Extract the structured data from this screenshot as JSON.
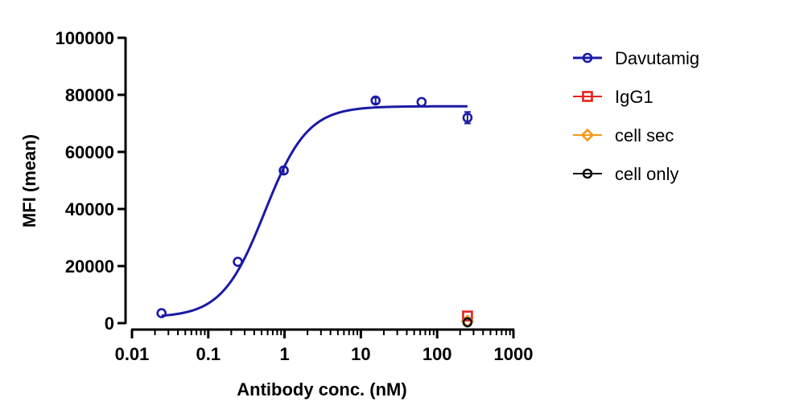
{
  "chart_data": {
    "type": "scatter",
    "title": "",
    "xlabel": "Antibody conc. (nM)",
    "ylabel": "MFI (mean)",
    "xscale": "log",
    "xlim": [
      0.01,
      1000
    ],
    "ylim": [
      0,
      100000
    ],
    "x_ticks": [
      0.01,
      0.1,
      1,
      10,
      100,
      1000
    ],
    "x_tick_labels": [
      "0.01",
      "0.1",
      "1",
      "10",
      "100",
      "1000"
    ],
    "y_ticks": [
      0,
      20000,
      40000,
      60000,
      80000,
      100000
    ],
    "y_tick_labels": [
      "0",
      "20000",
      "40000",
      "60000",
      "80000",
      "100000"
    ],
    "grid": false,
    "legend_position": "right",
    "series": [
      {
        "name": "Davutamig",
        "marker": "circle",
        "color": "#1a1aa6",
        "fit_curve": true,
        "x": [
          0.0244,
          0.244,
          0.976,
          15.6,
          62.5,
          250
        ],
        "y": [
          3500,
          21500,
          53500,
          78000,
          77500,
          72000
        ],
        "error": [
          0,
          0,
          1200,
          1000,
          0,
          2000
        ]
      },
      {
        "name": "IgG1",
        "marker": "square",
        "color": "#e8201f",
        "fit_curve": false,
        "x": [
          250
        ],
        "y": [
          2500
        ],
        "error": [
          0
        ]
      },
      {
        "name": "cell sec",
        "marker": "diamond",
        "color": "#f29a1c",
        "fit_curve": false,
        "x": [
          250
        ],
        "y": [
          700
        ],
        "error": [
          0
        ]
      },
      {
        "name": "cell only",
        "marker": "circle",
        "color": "#111111",
        "fit_curve": false,
        "x": [
          250
        ],
        "y": [
          300
        ],
        "error": [
          0
        ]
      }
    ]
  }
}
